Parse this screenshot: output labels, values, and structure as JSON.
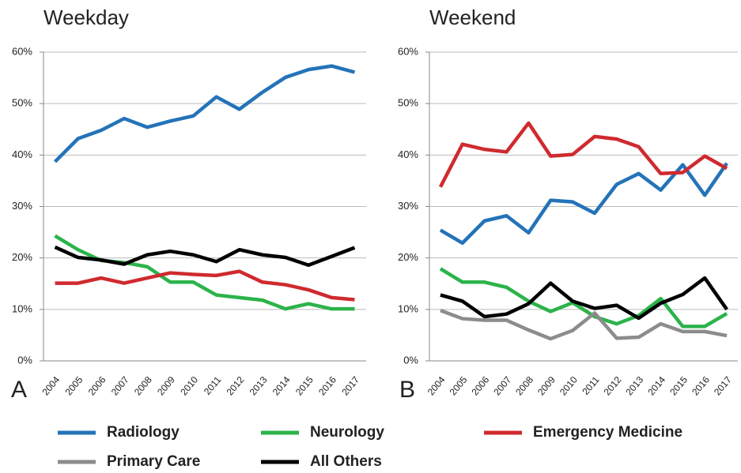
{
  "chart_data": [
    {
      "type": "line",
      "title": "Weekday",
      "panel_label": "A",
      "categories": [
        "2004",
        "2005",
        "2006",
        "2007",
        "2008",
        "2009",
        "2010",
        "2011",
        "2012",
        "2013",
        "2014",
        "2015",
        "2016",
        "2017"
      ],
      "ylim": [
        0,
        60
      ],
      "yticks": [
        {
          "value": 0,
          "label": "0%"
        },
        {
          "value": 10,
          "label": "10%"
        },
        {
          "value": 20,
          "label": "20%"
        },
        {
          "value": 30,
          "label": "30%"
        },
        {
          "value": 40,
          "label": "40%"
        },
        {
          "value": 50,
          "label": "50%"
        },
        {
          "value": 60,
          "label": "60%"
        }
      ],
      "grid": true,
      "series": [
        {
          "name": "Radiology",
          "color": "#2473b9",
          "values": [
            38.7,
            43.2,
            44.8,
            47.1,
            45.4,
            46.6,
            47.6,
            51.3,
            48.9,
            52.2,
            55.1,
            56.6,
            57.3,
            56.1
          ]
        },
        {
          "name": "Neurology",
          "color": "#2cb34a",
          "values": [
            24.3,
            21.6,
            19.5,
            19.1,
            18.3,
            15.3,
            15.3,
            12.8,
            12.3,
            11.8,
            10.1,
            11.1,
            10.1,
            10.1
          ]
        },
        {
          "name": "Emergency Medicine",
          "color": "#cf2a2f",
          "values": [
            15.1,
            15.1,
            16.1,
            15.1,
            16.1,
            17.1,
            16.8,
            16.6,
            17.4,
            15.3,
            14.8,
            13.8,
            12.3,
            11.9
          ]
        },
        {
          "name": "All Others",
          "color": "#000000",
          "values": [
            22.1,
            20.1,
            19.6,
            18.8,
            20.6,
            21.3,
            20.6,
            19.3,
            21.6,
            20.6,
            20.1,
            18.6,
            20.3,
            22.0
          ]
        }
      ]
    },
    {
      "type": "line",
      "title": "Weekend",
      "panel_label": "B",
      "categories": [
        "2004",
        "2005",
        "2006",
        "2007",
        "2008",
        "2009",
        "2010",
        "2011",
        "2012",
        "2013",
        "2014",
        "2015",
        "2016",
        "2017"
      ],
      "ylim": [
        0,
        60
      ],
      "yticks": [
        {
          "value": 0,
          "label": "0%"
        },
        {
          "value": 10,
          "label": "10%"
        },
        {
          "value": 20,
          "label": "20%"
        },
        {
          "value": 30,
          "label": "30%"
        },
        {
          "value": 40,
          "label": "40%"
        },
        {
          "value": 50,
          "label": "50%"
        },
        {
          "value": 60,
          "label": "60%"
        }
      ],
      "grid": true,
      "series": [
        {
          "name": "Radiology",
          "color": "#2473b9",
          "values": [
            25.4,
            22.9,
            27.2,
            28.2,
            24.9,
            31.2,
            30.9,
            28.7,
            34.3,
            36.4,
            33.2,
            38.1,
            32.2,
            38.4
          ]
        },
        {
          "name": "Neurology",
          "color": "#2cb34a",
          "values": [
            17.9,
            15.3,
            15.3,
            14.3,
            11.6,
            9.6,
            11.3,
            8.6,
            7.2,
            8.8,
            12.1,
            6.7,
            6.7,
            9.2
          ]
        },
        {
          "name": "Emergency Medicine",
          "color": "#cf2a2f",
          "values": [
            33.8,
            42.1,
            41.1,
            40.6,
            46.2,
            39.8,
            40.1,
            43.6,
            43.1,
            41.6,
            36.4,
            36.6,
            39.8,
            37.4
          ]
        },
        {
          "name": "Primary Care",
          "color": "#8c8c8c",
          "values": [
            9.8,
            8.2,
            7.9,
            7.9,
            6.0,
            4.3,
            5.9,
            9.3,
            4.4,
            4.6,
            7.2,
            5.7,
            5.7,
            4.9
          ]
        },
        {
          "name": "All Others",
          "color": "#000000",
          "values": [
            12.8,
            11.6,
            8.6,
            9.1,
            11.1,
            15.1,
            11.6,
            10.2,
            10.8,
            8.3,
            11.2,
            12.9,
            16.1,
            10.0
          ]
        }
      ]
    }
  ]
}
